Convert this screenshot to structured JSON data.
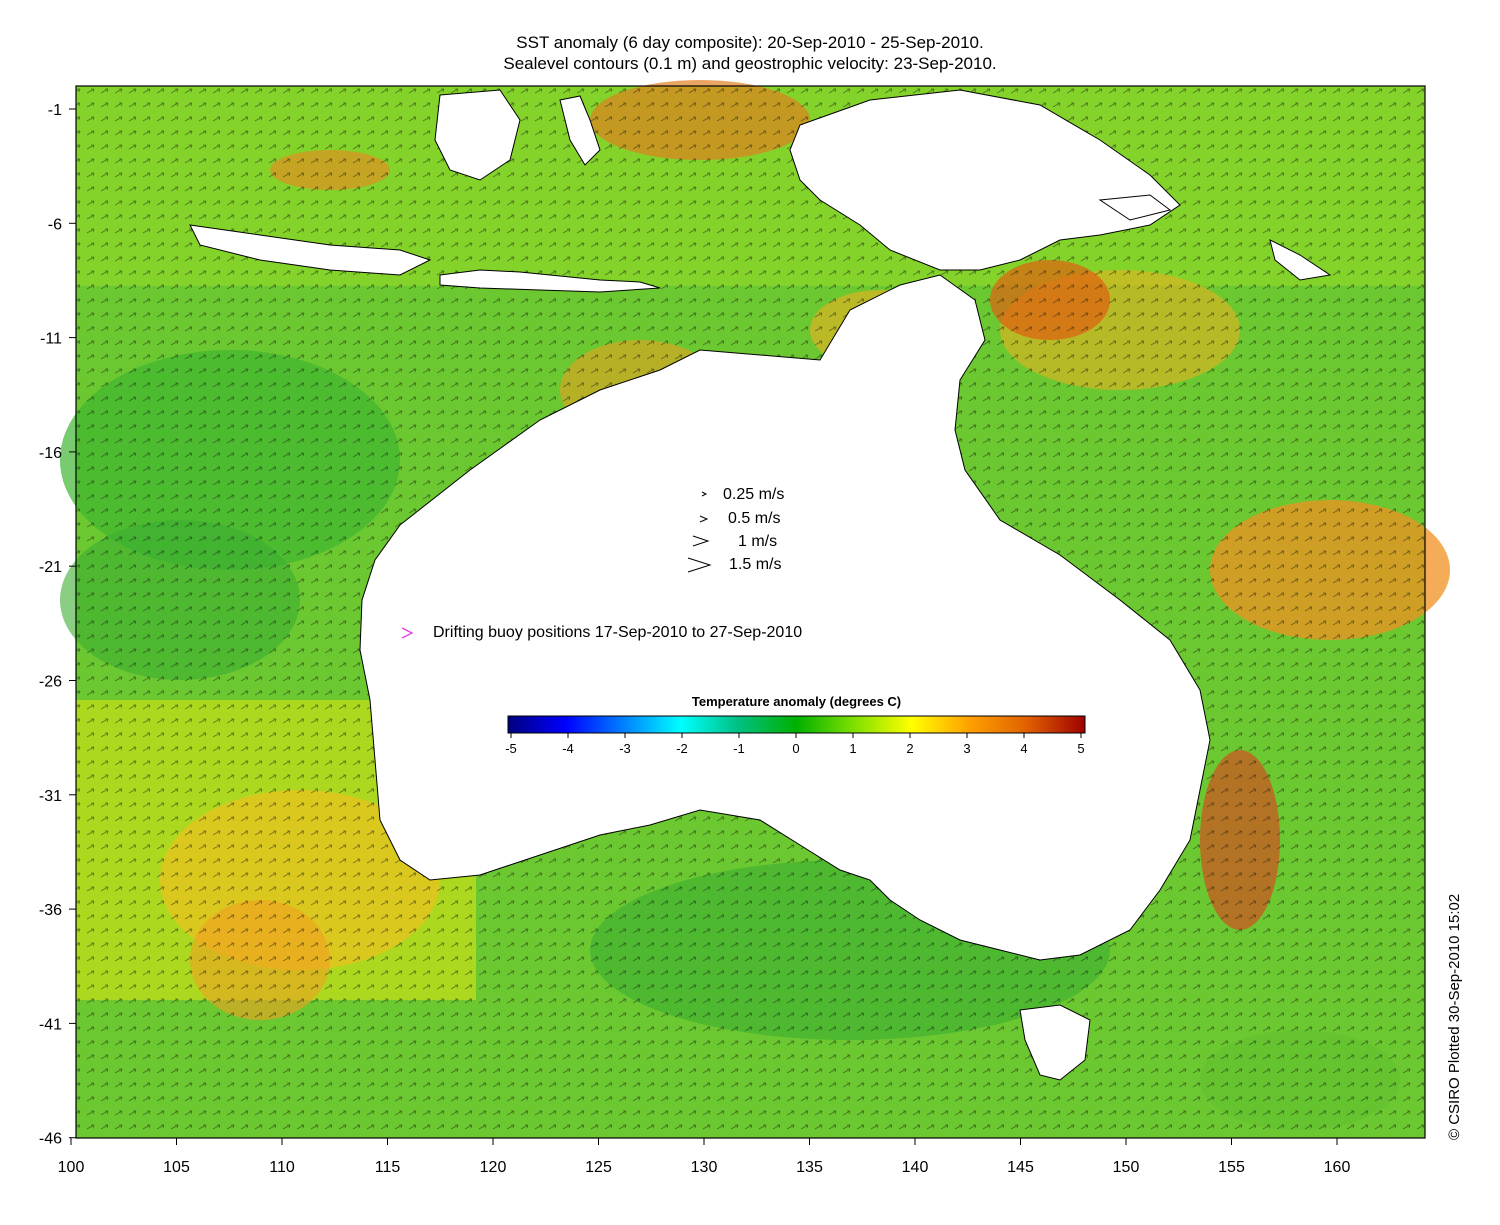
{
  "title_line1": "SST anomaly (6 day composite): 20-Sep-2010 - 25-Sep-2010.",
  "title_line2": "Sealevel contours (0.1 m) and geostrophic velocity: 23-Sep-2010.",
  "axes": {
    "x_ticks": [
      "100",
      "105",
      "110",
      "115",
      "120",
      "125",
      "130",
      "135",
      "140",
      "145",
      "150",
      "155",
      "160"
    ],
    "y_ticks": [
      "-1",
      "-6",
      "-11",
      "-16",
      "-21",
      "-26",
      "-31",
      "-36",
      "-41",
      "-46"
    ]
  },
  "velocity_legend": [
    "0.25 m/s",
    "0.5 m/s",
    "1 m/s",
    "1.5 m/s"
  ],
  "buoy_legend": {
    "label": "Drifting buoy positions 17-Sep-2010 to 27-Sep-2010",
    "color": "#e040e0"
  },
  "colorbar": {
    "title": "Temperature anomaly (degrees C)",
    "ticks": [
      "-5",
      "-4",
      "-3",
      "-2",
      "-1",
      "0",
      "1",
      "2",
      "3",
      "4",
      "5"
    ],
    "colors": [
      "#00007f",
      "#0000ff",
      "#0080ff",
      "#00ffff",
      "#00c080",
      "#00b000",
      "#80e000",
      "#ffff00",
      "#ffa000",
      "#e06000",
      "#9f0000"
    ]
  },
  "credit": "© CSIRO Plotted 30-Sep-2010 15:02"
}
